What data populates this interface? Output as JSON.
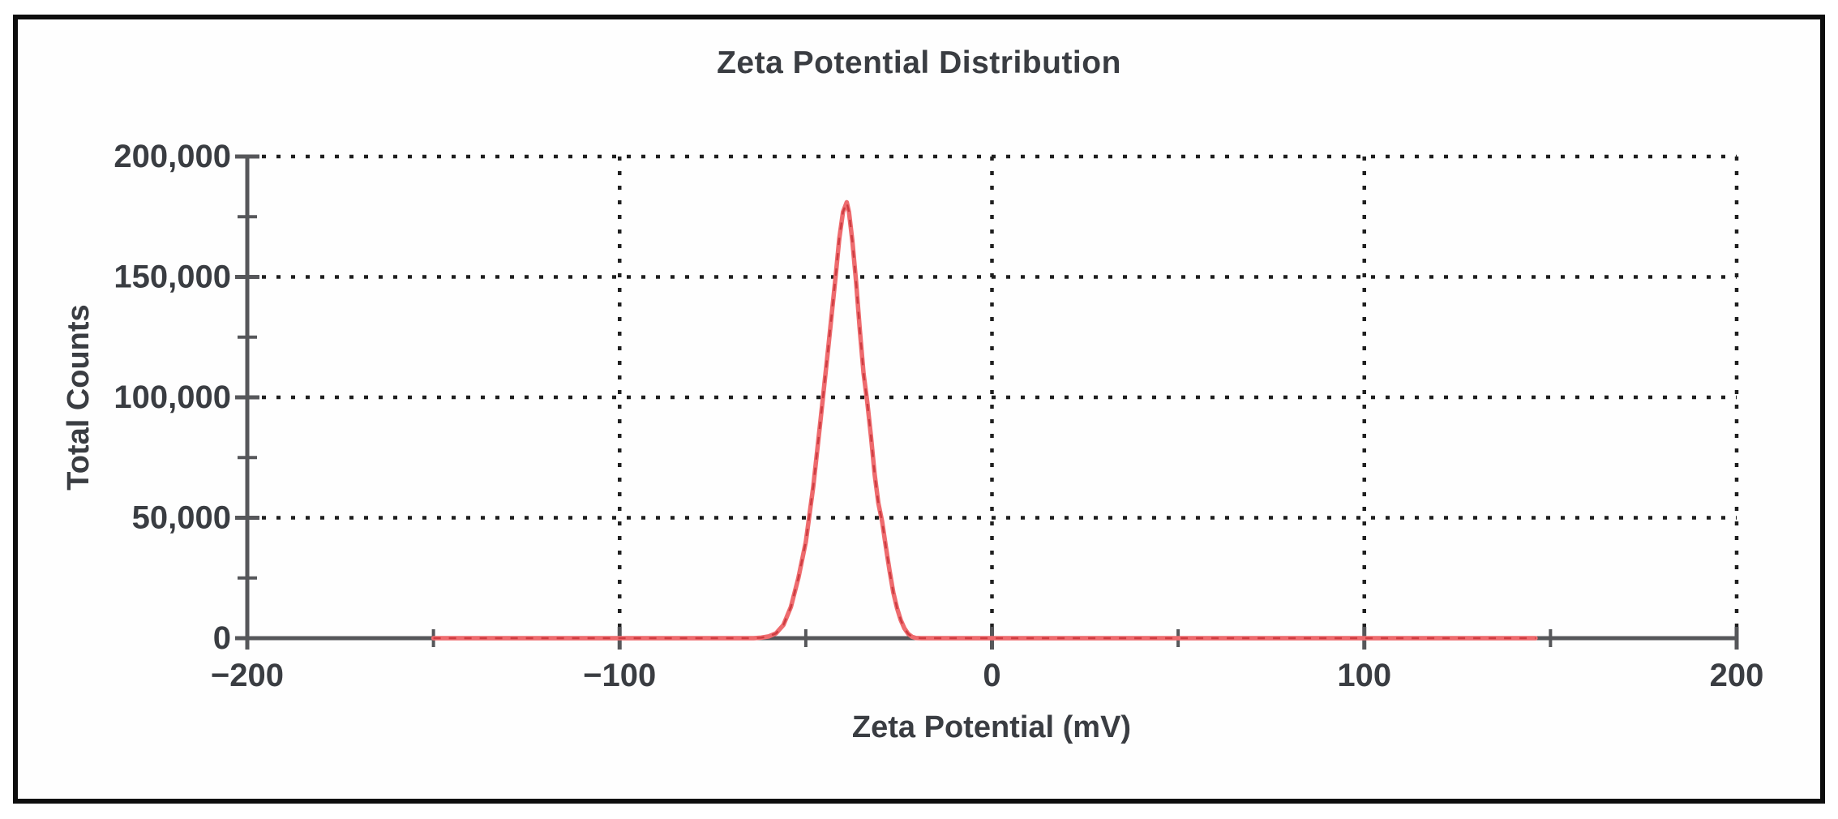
{
  "figure": {
    "background": "#ffffff",
    "border_color": "#0e0e0e"
  },
  "chart_data": {
    "type": "line",
    "title": "Zeta Potential Distribution",
    "xlabel": "Zeta Potential (mV)",
    "ylabel": "Total Counts",
    "xlim": [
      -200,
      200
    ],
    "ylim": [
      0,
      200000
    ],
    "grid": {
      "style": "dotted",
      "color": "#1f1f1f",
      "h_values": [
        50000,
        100000,
        150000,
        200000
      ],
      "v_values": [
        -100,
        0,
        100,
        200
      ]
    },
    "axis_color": "#56575a",
    "x_major_ticks": [
      {
        "value": -200,
        "label": "−200"
      },
      {
        "value": -100,
        "label": "−100"
      },
      {
        "value": 0,
        "label": "0"
      },
      {
        "value": 100,
        "label": "100"
      },
      {
        "value": 200,
        "label": "200"
      }
    ],
    "x_minor_ticks": [
      -150,
      -50,
      50,
      150
    ],
    "y_major_ticks": [
      {
        "value": 0,
        "label": "0"
      },
      {
        "value": 50000,
        "label": "50,000"
      },
      {
        "value": 100000,
        "label": "100,000"
      },
      {
        "value": 150000,
        "label": "150,000"
      },
      {
        "value": 200000,
        "label": "200,000"
      }
    ],
    "y_minor_ticks": [
      25000,
      75000,
      125000,
      175000
    ],
    "legend": "none",
    "series": [
      {
        "name": "zeta-potential-distribution",
        "color": "#ee6b6e",
        "dash_color": "#cd3c41",
        "peak_mv": -39,
        "peak_counts": 181000,
        "points": [
          [
            -150,
            0
          ],
          [
            -120,
            0
          ],
          [
            -100,
            0
          ],
          [
            -80,
            0
          ],
          [
            -70,
            0
          ],
          [
            -64,
            0
          ],
          [
            -62,
            200
          ],
          [
            -60,
            700
          ],
          [
            -58,
            2000
          ],
          [
            -56,
            5500
          ],
          [
            -54,
            13000
          ],
          [
            -52,
            25000
          ],
          [
            -50,
            40000
          ],
          [
            -48,
            63000
          ],
          [
            -46,
            91000
          ],
          [
            -44,
            120000
          ],
          [
            -42,
            150000
          ],
          [
            -41,
            166000
          ],
          [
            -40,
            177000
          ],
          [
            -39,
            181000
          ],
          [
            -38.4,
            177000
          ],
          [
            -37.5,
            165000
          ],
          [
            -36.5,
            148000
          ],
          [
            -35.5,
            128000
          ],
          [
            -34.5,
            110000
          ],
          [
            -33.5,
            98000
          ],
          [
            -32.5,
            84000
          ],
          [
            -31.5,
            68000
          ],
          [
            -30.5,
            56000
          ],
          [
            -29.5,
            48500
          ],
          [
            -28.5,
            38000
          ],
          [
            -27.5,
            28000
          ],
          [
            -26.5,
            19000
          ],
          [
            -25.5,
            12500
          ],
          [
            -24.5,
            7500
          ],
          [
            -23.5,
            4000
          ],
          [
            -22.5,
            1800
          ],
          [
            -21.5,
            600
          ],
          [
            -20.5,
            100
          ],
          [
            -19,
            0
          ],
          [
            0,
            0
          ],
          [
            50,
            0
          ],
          [
            100,
            0
          ],
          [
            146,
            0
          ]
        ]
      }
    ]
  }
}
